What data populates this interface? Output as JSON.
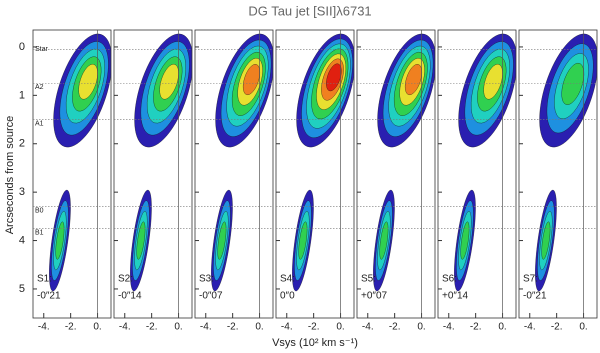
{
  "chart_data": {
    "type": "contour",
    "title": "DG Tau jet [SII]λ6731",
    "x_label": "Vsys (10² km s⁻¹)",
    "y_label": "Arcseconds from source",
    "xlim": [
      -4.8,
      1.0
    ],
    "xticks": [
      {
        "value": -4,
        "label": "-4."
      },
      {
        "value": -2,
        "label": "-2."
      },
      {
        "value": 0,
        "label": "0."
      }
    ],
    "ylim": [
      -0.35,
      5.6
    ],
    "yticks": [
      0,
      1,
      2,
      3,
      4,
      5
    ],
    "features": [
      {
        "label": "Star",
        "y": 0.05
      },
      {
        "label": "A2",
        "y": 0.75
      },
      {
        "label": "A1",
        "y": 1.5
      },
      {
        "label": "B0",
        "y": 3.3
      },
      {
        "label": "B1",
        "y": 3.75
      }
    ],
    "panels": [
      {
        "name": "S1:",
        "offset": "-0″21"
      },
      {
        "name": "S2:",
        "offset": "-0″14"
      },
      {
        "name": "S3:",
        "offset": "-0″07"
      },
      {
        "name": "S4:",
        "offset": "0″0"
      },
      {
        "name": "S5:",
        "offset": "+0″07"
      },
      {
        "name": "S6:",
        "offset": "+0″14"
      },
      {
        "name": "S7:",
        "offset": "-0″21"
      }
    ]
  }
}
